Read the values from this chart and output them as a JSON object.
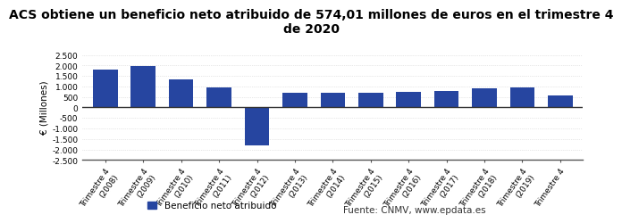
{
  "title_line1": "ACS obtiene un beneficio neto atribuido de 574,01 millones de euros en el trimestre 4",
  "title_line2": "de 2020",
  "ylabel": "€ (Millones)",
  "categories": [
    "Trimestre 4\n(2008)",
    "Trimestre 4\n(2009)",
    "Trimestre 4\n(2010)",
    "Trimestre 4\n(2011)",
    "Trimestre 4\n(2012)",
    "Trimestre 4\n(2013)",
    "Trimestre 4\n(2014)",
    "Trimestre 4\n(2015)",
    "Trimestre 4\n(2016)",
    "Trimestre 4\n(2017)",
    "Trimestre 4\n(2018)",
    "Trimestre 4\n(2019)",
    "Trimestre 4"
  ],
  "values": [
    1820,
    1960,
    1320,
    960,
    -1820,
    690,
    700,
    710,
    750,
    800,
    920,
    960,
    574
  ],
  "bar_color": "#2645a0",
  "ylim": [
    -2500,
    2500
  ],
  "yticks": [
    -2500,
    -2000,
    -1500,
    -1000,
    -500,
    0,
    500,
    1000,
    1500,
    2000,
    2500
  ],
  "ytick_labels": [
    "-2.500",
    "-2.000",
    "-1.500",
    "-1.000",
    "-500",
    "0",
    "500",
    "1.000",
    "1.500",
    "2.000",
    "2.500"
  ],
  "legend_label": "Beneficio neto atribuido",
  "source_text": "Fuente: CNMV, www.epdata.es",
  "background_color": "#ffffff",
  "grid_color": "#d0d0d0",
  "title_fontsize": 10,
  "ylabel_fontsize": 7.5,
  "tick_fontsize": 6.5,
  "legend_fontsize": 7.5
}
